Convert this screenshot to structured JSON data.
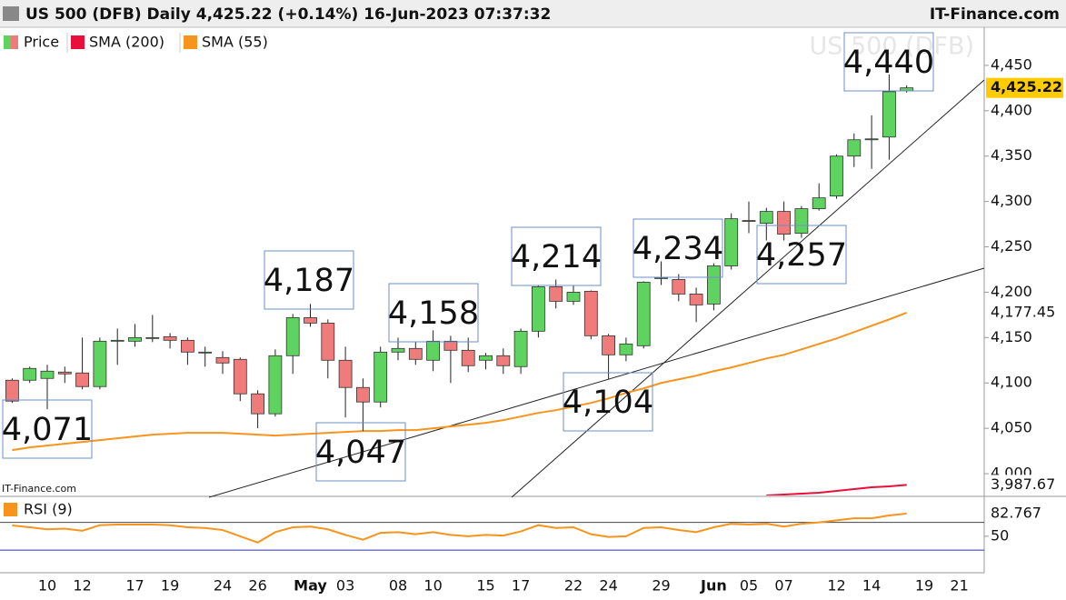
{
  "title": "US 500 (DFB) Daily 4,425.22 (+0.14%) 16-Jun-2023 07:37:32",
  "source": "IT-Finance.com",
  "chart_data": [
    {
      "type": "candlestick",
      "watermark": "US 500 (DFB)",
      "credit": "IT-Finance.com",
      "categories": [
        null,
        null,
        "10",
        null,
        "12",
        null,
        null,
        "17",
        null,
        "19",
        null,
        null,
        "24",
        null,
        "26",
        null,
        null,
        "May",
        null,
        "03",
        null,
        null,
        "08",
        null,
        "10",
        null,
        null,
        "15",
        null,
        "17",
        null,
        null,
        "22",
        null,
        "24",
        null,
        null,
        "29",
        null,
        null,
        "Jun",
        null,
        "05",
        null,
        "07",
        null,
        null,
        "12",
        null,
        "14",
        null,
        null,
        "19",
        null,
        "21"
      ],
      "candles": {
        "name": "Price",
        "up_color": "#5fd35f",
        "down_color": "#ef7b7b",
        "last_label": "4,425.22",
        "last_color": "#ffcc00",
        "open": [
          4103,
          4103,
          4105,
          4112,
          4111,
          4096,
          4146,
          4146,
          4149,
          4151,
          4147,
          4134,
          4128,
          4126,
          4088,
          4066,
          4130,
          4172,
          4166,
          4125,
          4095,
          4079,
          4134,
          4138,
          4125,
          4146,
          4136,
          4125,
          4130,
          4118,
          4157,
          4206,
          4190,
          4201,
          4152,
          4131,
          4141,
          4215,
          4214,
          4198,
          4187,
          4229,
          4279,
          4276,
          4289,
          4265,
          4292,
          4306,
          4350,
          4369,
          4371,
          4422,
          null,
          null,
          null
        ],
        "high": [
          4105,
          4118,
          4120,
          4118,
          4150,
          4150,
          4160,
          4165,
          4175,
          4155,
          4150,
          4140,
          4135,
          4128,
          4092,
          4137,
          4176,
          4187,
          4170,
          4140,
          4105,
          4140,
          4150,
          4145,
          4158,
          4152,
          4150,
          4133,
          4138,
          4160,
          4208,
          4214,
          4208,
          4202,
          4154,
          4150,
          4212,
          4234,
          4220,
          4205,
          4232,
          4287,
          4300,
          4293,
          4300,
          4295,
          4320,
          4352,
          4375,
          4395,
          4440,
          4428,
          null,
          null,
          null
        ],
        "low": [
          4078,
          4100,
          4071,
          4100,
          4093,
          4093,
          4120,
          4140,
          4145,
          4138,
          4120,
          4118,
          4110,
          4080,
          4050,
          4063,
          4110,
          4162,
          4105,
          4062,
          4047,
          4073,
          4125,
          4120,
          4113,
          4100,
          4112,
          4115,
          4110,
          4110,
          4150,
          4182,
          4186,
          4148,
          4104,
          4124,
          4138,
          4208,
          4190,
          4167,
          4180,
          4225,
          4265,
          4257,
          4257,
          4260,
          4290,
          4303,
          4338,
          4336,
          4346,
          4420,
          null,
          null,
          null
        ],
        "close": [
          4080,
          4116,
          4113,
          4110,
          4096,
          4146,
          4147,
          4150,
          4150,
          4147,
          4134,
          4134,
          4122,
          4088,
          4066,
          4130,
          4172,
          4166,
          4125,
          4095,
          4079,
          4134,
          4138,
          4126,
          4146,
          4136,
          4119,
          4130,
          4119,
          4157,
          4206,
          4190,
          4200,
          4152,
          4131,
          4143,
          4211,
          4216,
          4198,
          4186,
          4229,
          4281,
          4278,
          4289,
          4264,
          4292,
          4304,
          4350,
          4368,
          4369,
          4421,
          4425.22,
          null,
          null,
          null
        ]
      },
      "series": [
        {
          "name": "SMA (200)",
          "color": "#e8103a",
          "last_label": "3,987.67",
          "values": [
            null,
            null,
            null,
            null,
            null,
            null,
            null,
            null,
            null,
            null,
            null,
            null,
            null,
            null,
            null,
            null,
            null,
            null,
            null,
            null,
            null,
            null,
            null,
            null,
            null,
            null,
            null,
            null,
            null,
            null,
            null,
            null,
            null,
            null,
            null,
            null,
            null,
            null,
            null,
            null,
            null,
            null,
            null,
            3976,
            3977,
            3978,
            3979,
            3981,
            3983,
            3985,
            3986,
            3987.67,
            null,
            null,
            null
          ]
        },
        {
          "name": "SMA (55)",
          "color": "#f7941d",
          "last_label": "4,177.45",
          "values": [
            4026,
            4029,
            4031,
            4033,
            4035,
            4037,
            4039,
            4041,
            4043,
            4044,
            4045,
            4045,
            4045,
            4044,
            4043,
            4042,
            4043,
            4044,
            4045,
            4046,
            4047,
            4047,
            4048,
            4048,
            4050,
            4052,
            4054,
            4056,
            4059,
            4063,
            4067,
            4070,
            4074,
            4078,
            4083,
            4089,
            4094,
            4100,
            4104,
            4108,
            4113,
            4117,
            4122,
            4127,
            4131,
            4137,
            4143,
            4149,
            4156,
            4163,
            4170,
            4177.45,
            null,
            null,
            null
          ]
        }
      ],
      "annotations": [
        "4,071",
        "4,047",
        "4,187",
        "4,158",
        "4,214",
        "4,104",
        "4,234",
        "4,257",
        "4,440"
      ],
      "ylim": [
        3976,
        4492
      ],
      "yticks": [
        {
          "value": 4000,
          "label": "4,000"
        },
        {
          "value": 4050,
          "label": "4,050"
        },
        {
          "value": 4100,
          "label": "4,100"
        },
        {
          "value": 4150,
          "label": "4,150"
        },
        {
          "value": 4200,
          "label": "4,200"
        },
        {
          "value": 4250,
          "label": "4,250"
        },
        {
          "value": 4300,
          "label": "4,300"
        },
        {
          "value": 4350,
          "label": "4,350"
        },
        {
          "value": 4400,
          "label": "4,400"
        },
        {
          "value": 4450,
          "label": "4,450"
        }
      ]
    },
    {
      "type": "line",
      "series": [
        {
          "name": "RSI (9)",
          "color": "#f7941d",
          "last_label": "82.767",
          "values": [
            65.6,
            63,
            60,
            61,
            58,
            66,
            67,
            67,
            67,
            66,
            63,
            62,
            59,
            50,
            41,
            56,
            63,
            64,
            60,
            52,
            45,
            55,
            56,
            53,
            56,
            52,
            50,
            52,
            51,
            57,
            66,
            62,
            63,
            53,
            49,
            50,
            62,
            63,
            59,
            56,
            63,
            68,
            67,
            68,
            64,
            68,
            70,
            73,
            76,
            76,
            80,
            82.767,
            null,
            null,
            null
          ]
        }
      ],
      "levels": [
        70,
        30
      ],
      "level_colors": [
        "#444444",
        "#3030a0"
      ],
      "ylim": [
        0,
        105
      ],
      "yticks": [
        50
      ]
    }
  ]
}
